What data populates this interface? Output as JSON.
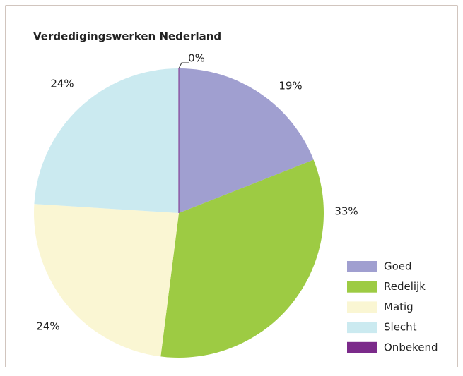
{
  "chart_data": {
    "type": "pie",
    "title": "Verdedigingswerken Nederland",
    "categories": [
      "Goed",
      "Redelijk",
      "Matig",
      "Slecht",
      "Onbekend"
    ],
    "values": [
      19,
      33,
      24,
      24,
      0
    ],
    "value_labels": [
      "19%",
      "33%",
      "24%",
      "24%",
      "0%"
    ],
    "colors": [
      "#a09fd0",
      "#9dcb43",
      "#faf6d3",
      "#cbeaf0",
      "#7b2a8a"
    ],
    "legend": "right"
  }
}
